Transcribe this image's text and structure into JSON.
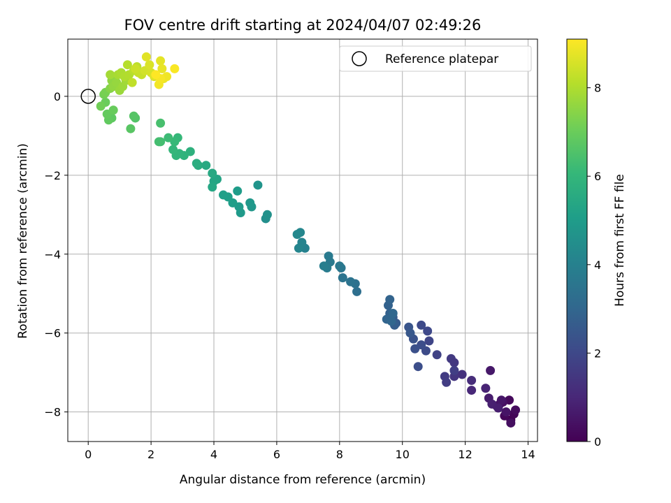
{
  "chart_data": {
    "type": "scatter",
    "title": "FOV centre drift starting at 2024/04/07 02:49:26",
    "xlabel": "Angular distance from reference (arcmin)",
    "ylabel": "Rotation from reference (arcmin)",
    "xlim": [
      -0.65,
      14.3
    ],
    "ylim": [
      -8.75,
      1.45
    ],
    "xticks": [
      0,
      2,
      4,
      6,
      8,
      10,
      12,
      14
    ],
    "yticks": [
      0,
      -2,
      -4,
      -6,
      -8
    ],
    "grid": true,
    "legend": {
      "placement": "top-right",
      "entries": [
        "Reference platepar"
      ]
    },
    "reference_point": {
      "x": 0,
      "y": 0
    },
    "colorbar": {
      "label": "Hours from first FF file",
      "range": [
        0,
        9.1
      ],
      "ticks": [
        0,
        2,
        4,
        6,
        8
      ],
      "colormap": "viridis"
    },
    "series": [
      {
        "fields": [
          "x",
          "y",
          "hours"
        ],
        "points": [
          [
            13.45,
            -8.2,
            0.0
          ],
          [
            13.55,
            -8.05,
            0.1
          ],
          [
            13.25,
            -8.1,
            0.15
          ],
          [
            13.4,
            -7.7,
            0.2
          ],
          [
            13.6,
            -7.95,
            0.25
          ],
          [
            13.1,
            -7.8,
            0.3
          ],
          [
            13.45,
            -8.28,
            0.35
          ],
          [
            13.2,
            -7.75,
            0.4
          ],
          [
            13.0,
            -7.85,
            0.45
          ],
          [
            13.3,
            -8.0,
            0.5
          ],
          [
            13.15,
            -7.7,
            0.55
          ],
          [
            12.8,
            -6.95,
            0.6
          ],
          [
            12.75,
            -7.65,
            0.7
          ],
          [
            12.85,
            -7.8,
            0.8
          ],
          [
            12.65,
            -7.4,
            0.9
          ],
          [
            13.05,
            -7.9,
            0.75
          ],
          [
            12.2,
            -7.45,
            1.0
          ],
          [
            12.2,
            -7.2,
            1.15
          ],
          [
            11.9,
            -7.05,
            1.3
          ],
          [
            11.65,
            -7.1,
            1.4
          ],
          [
            11.55,
            -6.65,
            1.55
          ],
          [
            11.65,
            -6.75,
            1.5
          ],
          [
            11.35,
            -7.1,
            1.6
          ],
          [
            11.4,
            -7.25,
            1.65
          ],
          [
            11.65,
            -6.95,
            1.7
          ],
          [
            11.1,
            -6.55,
            1.8
          ],
          [
            10.85,
            -6.2,
            1.9
          ],
          [
            10.8,
            -5.95,
            2.0
          ],
          [
            10.6,
            -5.8,
            2.05
          ],
          [
            10.75,
            -6.45,
            2.1
          ],
          [
            10.6,
            -6.3,
            2.15
          ],
          [
            10.5,
            -6.85,
            2.2
          ],
          [
            10.4,
            -6.4,
            2.25
          ],
          [
            10.35,
            -6.15,
            2.3
          ],
          [
            10.2,
            -5.85,
            2.4
          ],
          [
            10.25,
            -6.0,
            2.5
          ],
          [
            9.8,
            -5.75,
            2.6
          ],
          [
            9.7,
            -5.6,
            2.65
          ],
          [
            9.75,
            -5.8,
            2.7
          ],
          [
            9.6,
            -5.5,
            2.8
          ],
          [
            9.55,
            -5.3,
            2.85
          ],
          [
            9.6,
            -5.15,
            2.9
          ],
          [
            9.5,
            -5.65,
            2.95
          ],
          [
            9.65,
            -5.7,
            3.0
          ],
          [
            9.7,
            -5.5,
            3.05
          ],
          [
            8.55,
            -4.95,
            3.3
          ],
          [
            8.5,
            -4.75,
            3.4
          ],
          [
            8.35,
            -4.7,
            3.45
          ],
          [
            8.1,
            -4.6,
            3.5
          ],
          [
            8.05,
            -4.35,
            3.6
          ],
          [
            8.0,
            -4.3,
            3.65
          ],
          [
            7.7,
            -4.2,
            3.7
          ],
          [
            7.65,
            -4.05,
            3.75
          ],
          [
            7.6,
            -4.35,
            3.8
          ],
          [
            7.5,
            -4.3,
            3.9
          ],
          [
            6.9,
            -3.85,
            4.0
          ],
          [
            6.8,
            -3.7,
            4.1
          ],
          [
            6.7,
            -3.85,
            4.15
          ],
          [
            6.75,
            -3.45,
            4.2
          ],
          [
            6.65,
            -3.5,
            4.25
          ],
          [
            5.65,
            -3.1,
            4.5
          ],
          [
            5.7,
            -3.0,
            4.6
          ],
          [
            5.4,
            -2.25,
            4.7
          ],
          [
            5.2,
            -2.8,
            4.8
          ],
          [
            5.15,
            -2.7,
            4.85
          ],
          [
            4.85,
            -2.95,
            4.9
          ],
          [
            4.8,
            -2.8,
            4.95
          ],
          [
            4.75,
            -2.4,
            5.0
          ],
          [
            4.6,
            -2.7,
            5.05
          ],
          [
            4.45,
            -2.55,
            5.1
          ],
          [
            4.3,
            -2.5,
            5.15
          ],
          [
            4.1,
            -2.1,
            5.3
          ],
          [
            4.0,
            -2.15,
            5.35
          ],
          [
            3.95,
            -2.3,
            5.4
          ],
          [
            3.95,
            -1.95,
            5.45
          ],
          [
            3.75,
            -1.75,
            5.5
          ],
          [
            3.5,
            -1.75,
            5.6
          ],
          [
            3.45,
            -1.7,
            5.65
          ],
          [
            3.25,
            -1.4,
            5.8
          ],
          [
            3.05,
            -1.5,
            5.85
          ],
          [
            2.9,
            -1.45,
            5.9
          ],
          [
            2.8,
            -1.5,
            5.95
          ],
          [
            2.7,
            -1.35,
            6.0
          ],
          [
            2.85,
            -1.05,
            6.05
          ],
          [
            2.75,
            -1.15,
            6.1
          ],
          [
            2.55,
            -1.05,
            6.2
          ],
          [
            2.3,
            -1.15,
            6.3
          ],
          [
            2.25,
            -1.15,
            6.35
          ],
          [
            2.3,
            -0.68,
            6.4
          ],
          [
            1.5,
            -0.55,
            6.6
          ],
          [
            1.45,
            -0.5,
            6.65
          ],
          [
            1.35,
            -0.82,
            6.7
          ],
          [
            0.75,
            -0.55,
            6.8
          ],
          [
            0.65,
            -0.6,
            6.85
          ],
          [
            0.6,
            -0.45,
            6.9
          ],
          [
            0.8,
            -0.35,
            6.95
          ],
          [
            0.55,
            -0.15,
            7.0
          ],
          [
            0.4,
            -0.25,
            7.1
          ],
          [
            0.5,
            0.05,
            7.15
          ],
          [
            0.55,
            0.1,
            7.2
          ],
          [
            0.7,
            0.2,
            7.4
          ],
          [
            0.85,
            0.3,
            7.5
          ],
          [
            0.75,
            0.4,
            7.55
          ],
          [
            0.8,
            0.25,
            7.6
          ],
          [
            0.9,
            0.35,
            7.65
          ],
          [
            1.0,
            0.15,
            7.7
          ],
          [
            1.1,
            0.25,
            7.75
          ],
          [
            1.2,
            0.4,
            7.8
          ],
          [
            0.7,
            0.55,
            7.85
          ],
          [
            0.95,
            0.55,
            7.9
          ],
          [
            1.05,
            0.6,
            7.95
          ],
          [
            1.15,
            0.5,
            8.0
          ],
          [
            1.3,
            0.55,
            8.05
          ],
          [
            1.25,
            0.8,
            8.1
          ],
          [
            1.45,
            0.65,
            8.15
          ],
          [
            1.55,
            0.75,
            8.2
          ],
          [
            1.4,
            0.35,
            8.25
          ],
          [
            1.6,
            0.6,
            8.3
          ],
          [
            1.7,
            0.55,
            8.35
          ],
          [
            1.5,
            0.7,
            8.4
          ],
          [
            1.8,
            0.65,
            8.5
          ],
          [
            2.0,
            0.6,
            8.55
          ],
          [
            1.95,
            0.8,
            8.6
          ],
          [
            2.1,
            0.5,
            8.65
          ],
          [
            1.85,
            1.0,
            8.7
          ],
          [
            2.3,
            0.9,
            8.75
          ],
          [
            2.35,
            0.7,
            8.8
          ],
          [
            2.4,
            0.45,
            8.85
          ],
          [
            2.5,
            0.5,
            8.9
          ],
          [
            2.25,
            0.3,
            8.95
          ],
          [
            2.3,
            0.45,
            9.0
          ],
          [
            2.75,
            0.7,
            9.05
          ],
          [
            2.15,
            0.55,
            9.1
          ]
        ]
      }
    ]
  }
}
